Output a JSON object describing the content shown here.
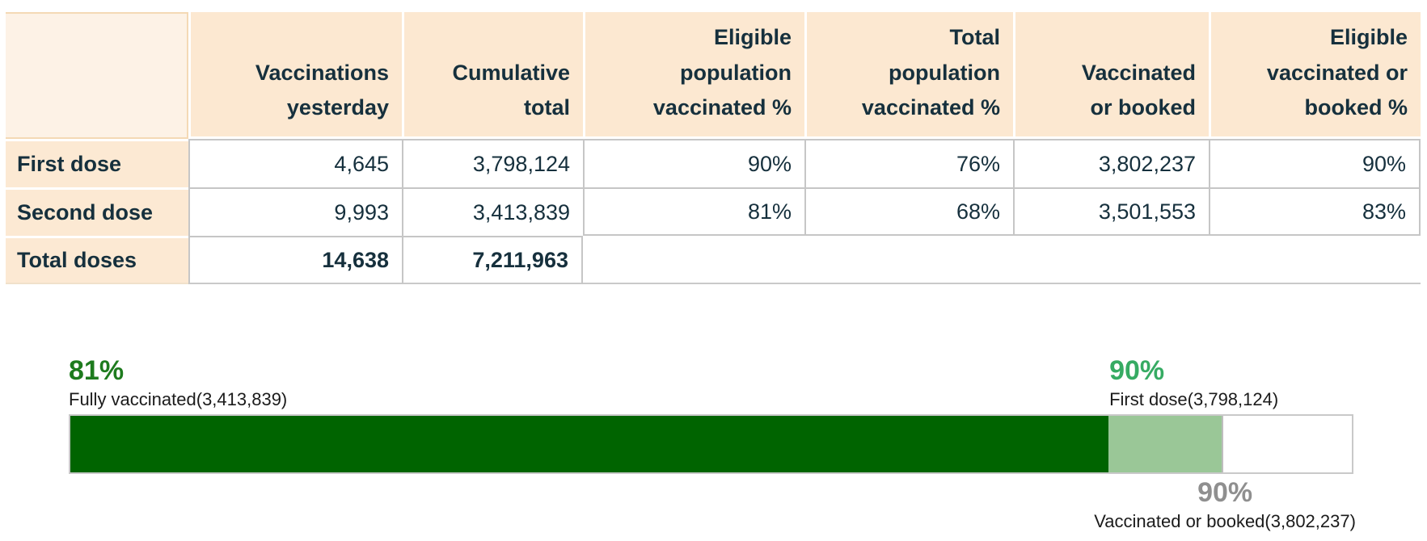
{
  "colors": {
    "header_bg": "#fce8d1",
    "corner_bg": "#fdf2e6",
    "table_text": "#16303d",
    "cell_border": "#c6c6c6",
    "dark_green": "#006400",
    "light_green": "#9ac797",
    "caption_text": "#1b1b1b"
  },
  "table": {
    "columns": [
      "",
      "Vaccinations\nyesterday",
      "Cumulative\ntotal",
      "Eligible\npopulation\nvaccinated %",
      "Total\npopulation\nvaccinated %",
      "Vaccinated\nor booked",
      "Eligible\nvaccinated or\nbooked %"
    ],
    "rows": [
      {
        "label": "First dose",
        "values": [
          "4,645",
          "3,798,124",
          "90%",
          "76%",
          "3,802,237",
          "90%"
        ]
      },
      {
        "label": "Second dose",
        "values": [
          "9,993",
          "3,413,839",
          "81%",
          "68%",
          "3,501,553",
          "83%"
        ]
      },
      {
        "label": "Total doses",
        "values": [
          "14,638",
          "7,211,963"
        ]
      }
    ]
  },
  "chart_data": {
    "type": "bar",
    "subtype": "horizontal-stacked-progress",
    "xlim": [
      0,
      100
    ],
    "grid": false,
    "track": {
      "background": "#ffffff",
      "border_color": "#c9c9c9"
    },
    "series": [
      {
        "name": "Fully vaccinated",
        "percent": 81,
        "count": 3413839,
        "percent_label": "81%",
        "caption": "Fully vaccinated(3,413,839)",
        "bar_color": "#006400",
        "label_color": "#1e7b1e",
        "label_position": "above-left"
      },
      {
        "name": "First dose",
        "percent": 90,
        "count": 3798124,
        "percent_label": "90%",
        "caption": "First dose(3,798,124)",
        "bar_color": "#9ac797",
        "label_color": "#36ab63",
        "label_position": "above-81pct-boundary"
      },
      {
        "name": "Vaccinated or booked",
        "percent": 90,
        "count": 3802237,
        "percent_label": "90%",
        "caption": "Vaccinated or booked(3,802,237)",
        "bar_color": "#ffffff",
        "label_color": "#8f8f8f",
        "label_position": "below-90pct-boundary"
      }
    ]
  }
}
